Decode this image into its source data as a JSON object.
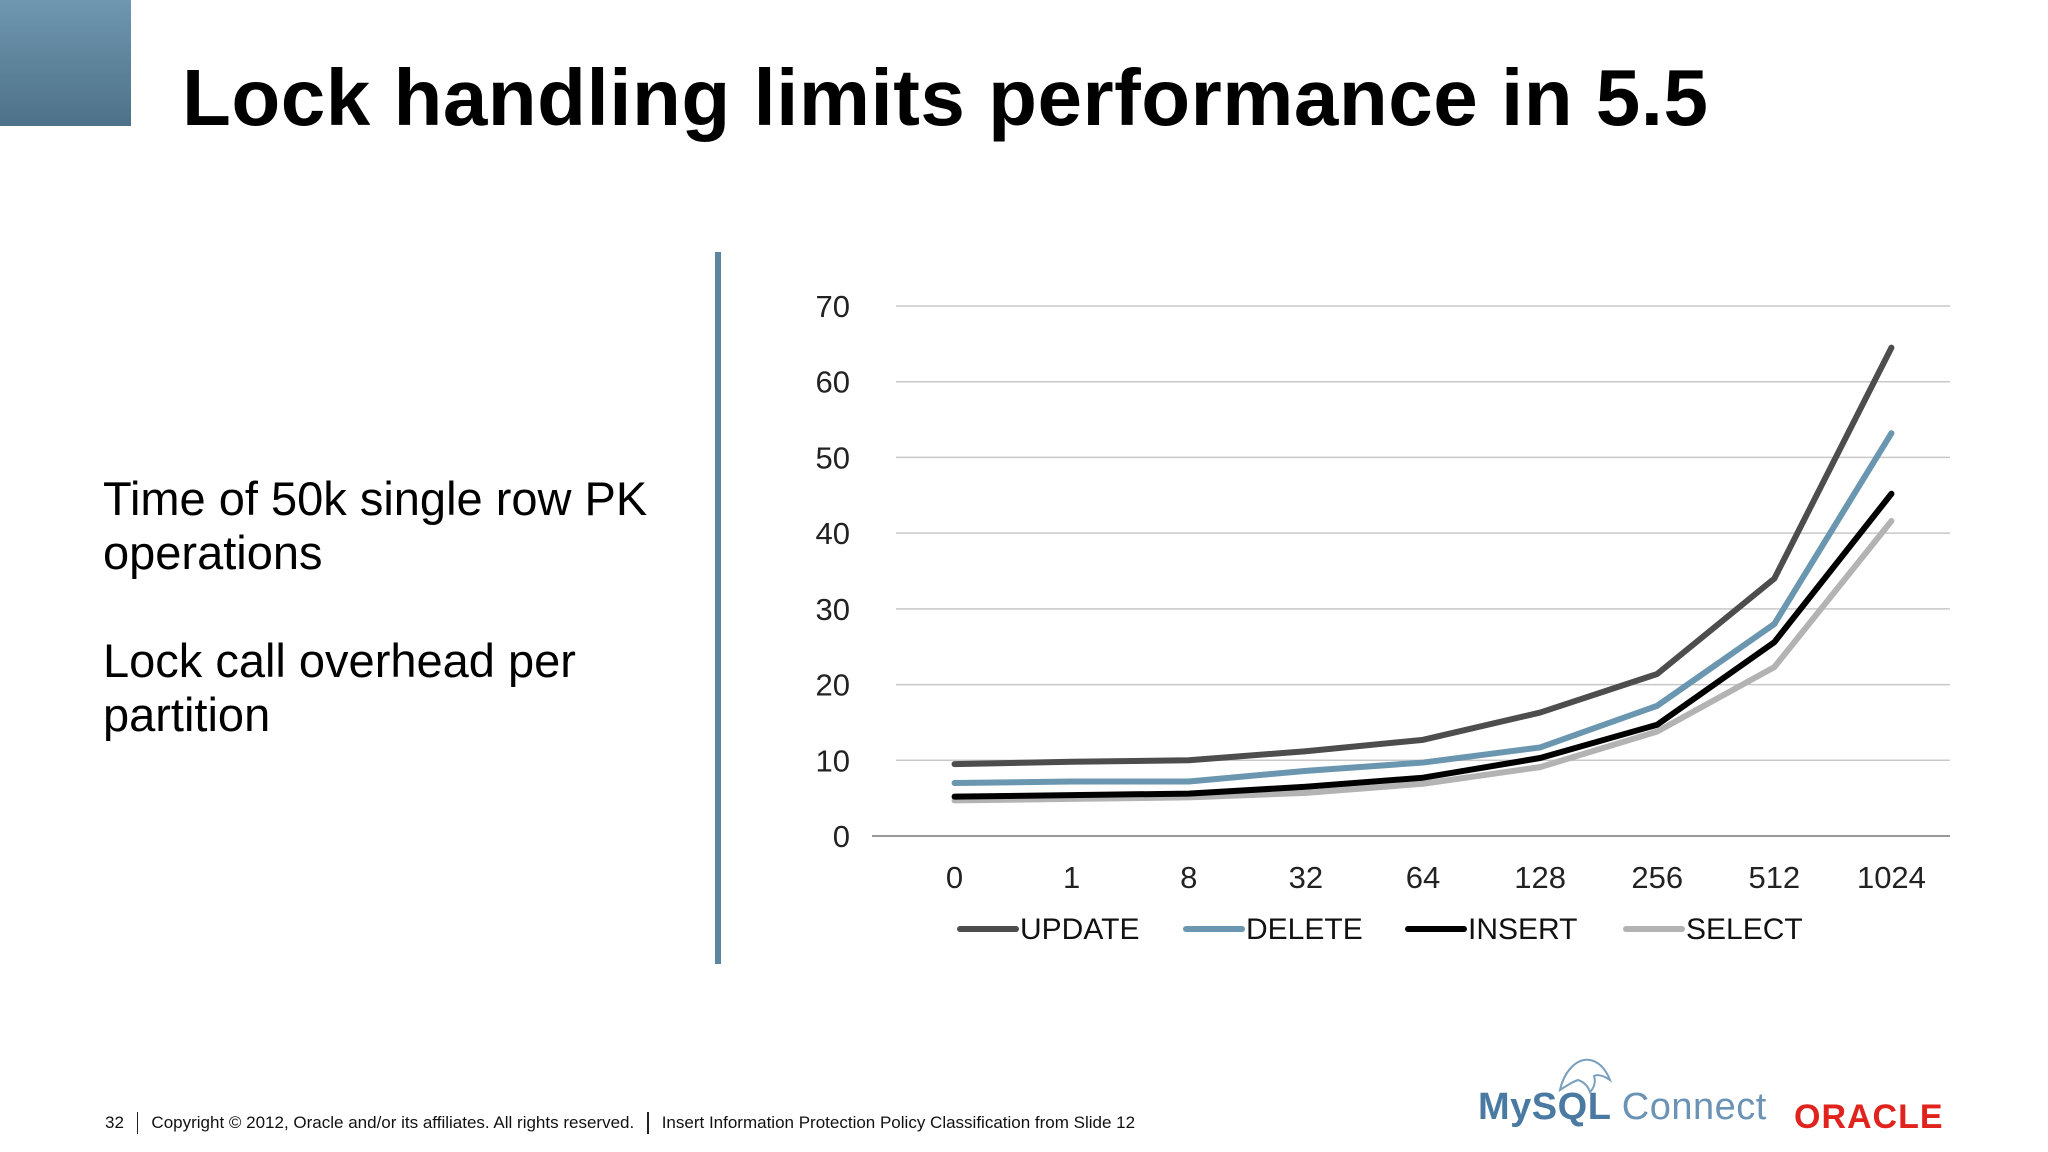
{
  "slide": {
    "title": "Lock handling limits performance in 5.5",
    "bullets": [
      "Time of 50k single row PK operations",
      "Lock call overhead per partition"
    ]
  },
  "footer": {
    "page_number": "32",
    "copyright": "Copyright © 2012, Oracle and/or its affiliates. All rights reserved.",
    "classification": "Insert Information Protection Policy Classification from Slide 12"
  },
  "logos": {
    "mysql_text": "MySQL",
    "mysql_connect": "Connect",
    "oracle_text": "ORACLE"
  },
  "colors": {
    "accent": "#5f84a0",
    "update": "#4d4d4d",
    "delete": "#6a96b0",
    "insert": "#000000",
    "select": "#b3b3b3",
    "oracle_red": "#e0231c"
  },
  "chart_data": {
    "type": "line",
    "title": "",
    "xlabel": "",
    "ylabel": "",
    "categories": [
      "0",
      "1",
      "8",
      "32",
      "64",
      "128",
      "256",
      "512",
      "1024"
    ],
    "ylim": [
      0,
      70
    ],
    "yticks": [
      0,
      10,
      20,
      30,
      40,
      50,
      60,
      70
    ],
    "grid": true,
    "legend": "bottom",
    "series": [
      {
        "name": "UPDATE",
        "color": "#4d4d4d",
        "values": [
          9.5,
          9.8,
          10,
          11.2,
          12.7,
          16.3,
          21.4,
          34,
          64.5
        ]
      },
      {
        "name": "DELETE",
        "color": "#6a96b0",
        "values": [
          7,
          7.2,
          7.2,
          8.6,
          9.7,
          11.7,
          17.2,
          28,
          53.2
        ]
      },
      {
        "name": "INSERT",
        "color": "#000000",
        "values": [
          5.2,
          5.4,
          5.6,
          6.5,
          7.7,
          10.3,
          14.7,
          25.6,
          45.2
        ]
      },
      {
        "name": "SELECT",
        "color": "#b3b3b3",
        "values": [
          4.7,
          4.9,
          5.1,
          5.7,
          6.9,
          9.1,
          13.8,
          22.3,
          41.6
        ]
      }
    ]
  }
}
